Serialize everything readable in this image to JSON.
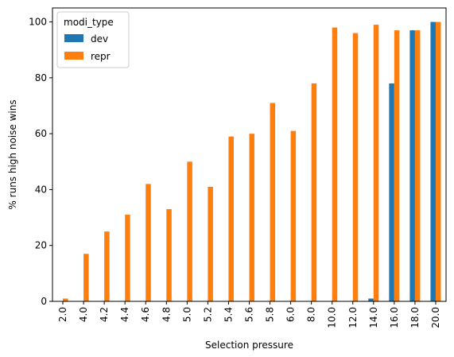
{
  "chart_data": {
    "type": "bar",
    "categories": [
      "2.0",
      "4.0",
      "4.2",
      "4.4",
      "4.6",
      "4.8",
      "5.0",
      "5.2",
      "5.4",
      "5.6",
      "5.8",
      "6.0",
      "8.0",
      "10.0",
      "12.0",
      "14.0",
      "16.0",
      "18.0",
      "20.0"
    ],
    "series": [
      {
        "name": "dev",
        "color": "#1f77b4",
        "values": [
          0,
          0,
          0,
          0,
          0,
          0,
          0,
          0,
          0,
          0,
          0,
          0,
          0,
          0,
          0,
          1,
          78,
          97,
          100
        ]
      },
      {
        "name": "repr",
        "color": "#ff7f0e",
        "values": [
          1,
          17,
          25,
          31,
          42,
          33,
          50,
          41,
          59,
          60,
          71,
          61,
          78,
          98,
          96,
          99,
          97,
          97,
          100
        ]
      }
    ],
    "xlabel": "Selection pressure",
    "ylabel": "% runs high noise wins",
    "ylim": [
      0,
      105
    ],
    "yticks": [
      0,
      20,
      40,
      60,
      80,
      100
    ],
    "legend": {
      "title": "modi_type",
      "placement": "top-left"
    },
    "grid": false
  }
}
